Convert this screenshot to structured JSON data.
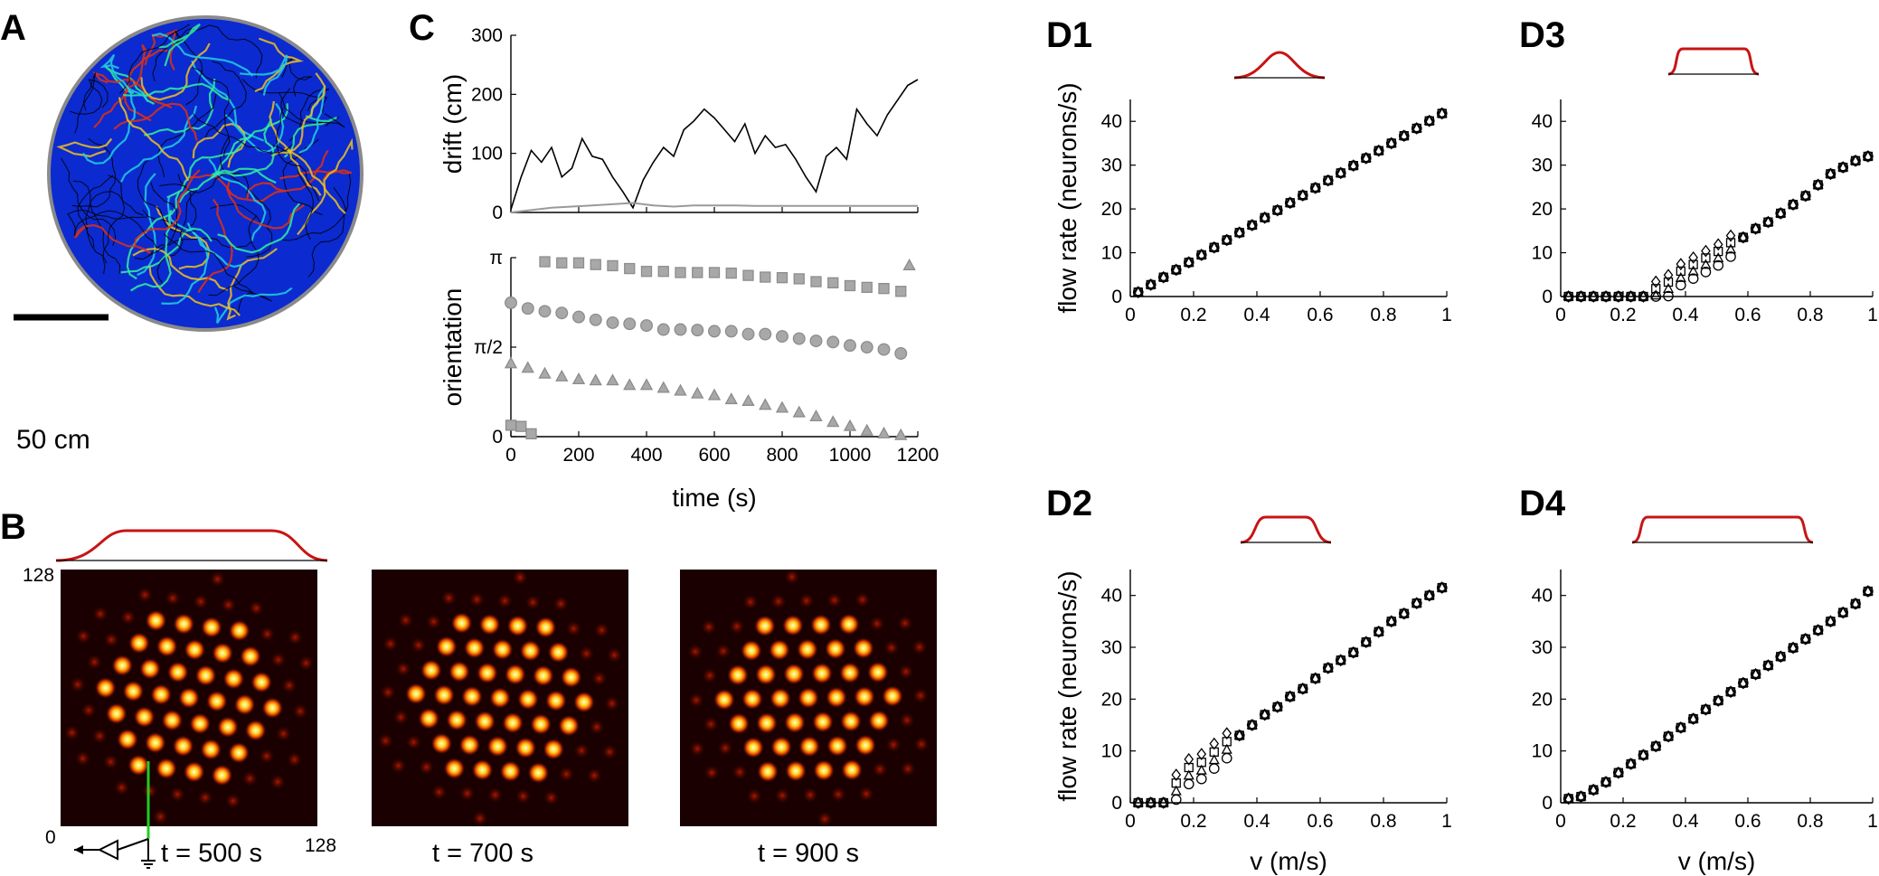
{
  "panels": {
    "A": "A",
    "B": "B",
    "C": "C",
    "D1": "D1",
    "D2": "D2",
    "D3": "D3",
    "D4": "D4"
  },
  "colors": {
    "profile_red": "#c81414",
    "marker_gray": "#a8a8a8",
    "drift_gray": "#9a9a9a",
    "arena_blue": "#0b2ad0",
    "arena_rim": "#8a8a8a",
    "green_line": "#22cc22"
  },
  "panelA": {
    "scalebar_label": "50 cm"
  },
  "panelB": {
    "ytick_top": "128",
    "ytick_bottom": "0",
    "xtick_right": "128",
    "captions": [
      "t = 500 s",
      "t = 700 s",
      "t = 900 s"
    ]
  },
  "chart_data": [
    {
      "id": "C-drift",
      "type": "line",
      "title": "",
      "xlabel": "",
      "ylabel": "drift (cm)",
      "xlim": [
        0,
        1200
      ],
      "ylim": [
        0,
        300
      ],
      "yticks": [
        "0",
        "100",
        "200",
        "300"
      ],
      "series": [
        {
          "name": "drift",
          "color": "#000000",
          "x": [
            0,
            30,
            60,
            90,
            120,
            150,
            180,
            210,
            240,
            270,
            300,
            330,
            360,
            390,
            420,
            450,
            480,
            510,
            540,
            570,
            600,
            630,
            660,
            690,
            720,
            750,
            780,
            810,
            840,
            870,
            900,
            930,
            960,
            990,
            1020,
            1050,
            1080,
            1110,
            1140,
            1170,
            1200
          ],
          "y": [
            5,
            60,
            105,
            85,
            110,
            60,
            75,
            125,
            95,
            90,
            60,
            35,
            8,
            55,
            85,
            110,
            95,
            140,
            155,
            175,
            160,
            140,
            120,
            150,
            100,
            130,
            110,
            115,
            90,
            60,
            35,
            95,
            110,
            90,
            175,
            150,
            130,
            165,
            190,
            215,
            225
          ]
        },
        {
          "name": "baseline",
          "color": "#9a9a9a",
          "x": [
            0,
            60,
            120,
            180,
            240,
            300,
            360,
            420,
            480,
            540,
            600,
            660,
            720,
            780,
            840,
            900,
            960,
            1020,
            1080,
            1140,
            1200
          ],
          "y": [
            0,
            4,
            8,
            10,
            12,
            14,
            16,
            12,
            10,
            12,
            12,
            12,
            11,
            11,
            11,
            11,
            11,
            11,
            11,
            11,
            11
          ]
        }
      ]
    },
    {
      "id": "C-orientation",
      "type": "scatter",
      "xlabel": "time (s)",
      "ylabel": "orientation",
      "xlim": [
        0,
        1200
      ],
      "ylim": [
        0,
        3.1416
      ],
      "xticks": [
        "0",
        "200",
        "400",
        "600",
        "800",
        "1000",
        "1200"
      ],
      "yticks": [
        "0",
        "π/2",
        "π"
      ],
      "series": [
        {
          "name": "squares",
          "marker": "square",
          "x": [
            0,
            30,
            60,
            100,
            150,
            200,
            250,
            300,
            350,
            400,
            450,
            500,
            550,
            600,
            650,
            700,
            750,
            800,
            850,
            900,
            950,
            1000,
            1050,
            1100,
            1150
          ],
          "y": [
            0.2,
            0.18,
            0.05,
            3.07,
            3.05,
            3.05,
            3.02,
            3.0,
            2.95,
            2.9,
            2.9,
            2.88,
            2.88,
            2.88,
            2.87,
            2.83,
            2.8,
            2.79,
            2.77,
            2.72,
            2.7,
            2.65,
            2.62,
            2.6,
            2.55
          ]
        },
        {
          "name": "circles",
          "marker": "circle",
          "x": [
            0,
            50,
            100,
            150,
            200,
            250,
            300,
            350,
            400,
            450,
            500,
            550,
            600,
            650,
            700,
            750,
            800,
            850,
            900,
            950,
            1000,
            1050,
            1100,
            1150
          ],
          "y": [
            2.35,
            2.25,
            2.2,
            2.17,
            2.1,
            2.05,
            2.0,
            1.98,
            1.95,
            1.88,
            1.88,
            1.87,
            1.85,
            1.85,
            1.8,
            1.8,
            1.76,
            1.72,
            1.68,
            1.66,
            1.6,
            1.57,
            1.53,
            1.46
          ]
        },
        {
          "name": "triangles",
          "marker": "triangle",
          "x": [
            0,
            50,
            100,
            150,
            200,
            250,
            300,
            350,
            400,
            450,
            500,
            550,
            600,
            650,
            700,
            750,
            800,
            850,
            900,
            950,
            1000,
            1050,
            1100,
            1150,
            1175
          ],
          "y": [
            1.28,
            1.2,
            1.1,
            1.05,
            1.0,
            0.98,
            0.98,
            0.9,
            0.9,
            0.85,
            0.8,
            0.75,
            0.72,
            0.65,
            0.62,
            0.55,
            0.5,
            0.42,
            0.35,
            0.25,
            0.18,
            0.1,
            0.05,
            0.02,
            3.0
          ]
        }
      ]
    },
    {
      "id": "D1",
      "type": "scatter",
      "ylabel": "flow rate (neurons/s)",
      "xlabel": "",
      "xlim": [
        0,
        1
      ],
      "ylim": [
        0,
        45
      ],
      "xticks": [
        "0",
        "0.2",
        "0.4",
        "0.6",
        "0.8",
        "1"
      ],
      "yticks": [
        "0",
        "10",
        "20",
        "30",
        "40"
      ],
      "profile": "gaussian",
      "series": [
        {
          "name": "all",
          "marker": "mixed",
          "x": [
            0.025,
            0.065,
            0.105,
            0.145,
            0.185,
            0.225,
            0.265,
            0.305,
            0.345,
            0.385,
            0.425,
            0.465,
            0.505,
            0.545,
            0.585,
            0.625,
            0.665,
            0.705,
            0.745,
            0.785,
            0.825,
            0.865,
            0.905,
            0.945,
            0.985
          ],
          "y": [
            1.0,
            2.7,
            4.4,
            6.1,
            7.8,
            9.5,
            11.2,
            12.9,
            14.6,
            16.3,
            18.0,
            19.7,
            21.4,
            23.1,
            24.8,
            26.5,
            28.2,
            29.9,
            31.6,
            33.3,
            35.0,
            36.7,
            38.4,
            40.1,
            41.8
          ]
        }
      ]
    },
    {
      "id": "D2",
      "type": "scatter",
      "ylabel": "flow rate (neurons/s)",
      "xlabel": "v (m/s)",
      "xlim": [
        0,
        1
      ],
      "ylim": [
        0,
        45
      ],
      "xticks": [
        "0",
        "0.2",
        "0.4",
        "0.6",
        "0.8",
        "1"
      ],
      "yticks": [
        "0",
        "10",
        "20",
        "30",
        "40"
      ],
      "profile": "short plateau",
      "series": [
        {
          "name": "all",
          "marker": "mixed",
          "x": [
            0.025,
            0.065,
            0.105,
            0.145,
            0.185,
            0.225,
            0.265,
            0.305,
            0.345,
            0.385,
            0.425,
            0.465,
            0.505,
            0.545,
            0.585,
            0.625,
            0.665,
            0.705,
            0.745,
            0.785,
            0.825,
            0.865,
            0.905,
            0.945,
            0.985
          ],
          "y": [
            0.0,
            0.0,
            0.0,
            3.0,
            6.0,
            7.0,
            9.0,
            11.0,
            13.0,
            15.0,
            17.0,
            18.5,
            20.5,
            22.0,
            24.0,
            26.0,
            27.5,
            29.0,
            31.0,
            33.0,
            35.0,
            36.5,
            38.5,
            40.0,
            41.5
          ]
        }
      ]
    },
    {
      "id": "D3",
      "type": "scatter",
      "ylabel": "",
      "xlabel": "",
      "xlim": [
        0,
        1
      ],
      "ylim": [
        0,
        45
      ],
      "xticks": [
        "0",
        "0.2",
        "0.4",
        "0.6",
        "0.8",
        "1"
      ],
      "yticks": [
        "0",
        "10",
        "20",
        "30",
        "40"
      ],
      "profile": "wide plateau",
      "series": [
        {
          "name": "all",
          "marker": "mixed",
          "x": [
            0.025,
            0.065,
            0.105,
            0.145,
            0.185,
            0.225,
            0.265,
            0.305,
            0.345,
            0.385,
            0.425,
            0.465,
            0.505,
            0.545,
            0.585,
            0.625,
            0.665,
            0.705,
            0.745,
            0.785,
            0.825,
            0.865,
            0.905,
            0.945,
            0.985
          ],
          "y": [
            0.0,
            0.0,
            0.0,
            0.0,
            0.0,
            0.0,
            0.0,
            1.0,
            2.5,
            5.0,
            6.5,
            8.0,
            9.5,
            11.5,
            13.5,
            15.5,
            17.0,
            19.0,
            21.0,
            23.0,
            25.5,
            28.0,
            29.5,
            31.0,
            32.0
          ]
        }
      ]
    },
    {
      "id": "D4",
      "type": "scatter",
      "ylabel": "",
      "xlabel": "v (m/s)",
      "xlim": [
        0,
        1
      ],
      "ylim": [
        0,
        45
      ],
      "xticks": [
        "0",
        "0.2",
        "0.4",
        "0.6",
        "0.8",
        "1"
      ],
      "yticks": [
        "0",
        "10",
        "20",
        "30",
        "40"
      ],
      "profile": "long plateau",
      "series": [
        {
          "name": "all",
          "marker": "mixed",
          "x": [
            0.025,
            0.065,
            0.105,
            0.145,
            0.185,
            0.225,
            0.265,
            0.305,
            0.345,
            0.385,
            0.425,
            0.465,
            0.505,
            0.545,
            0.585,
            0.625,
            0.665,
            0.705,
            0.745,
            0.785,
            0.825,
            0.865,
            0.905,
            0.945,
            0.985
          ],
          "y": [
            0.8,
            1.2,
            2.5,
            4.0,
            5.8,
            7.5,
            9.2,
            10.9,
            12.8,
            14.5,
            16.2,
            18.0,
            19.7,
            21.4,
            23.1,
            24.8,
            26.5,
            28.2,
            29.9,
            31.6,
            33.3,
            35.0,
            36.7,
            38.4,
            40.8
          ]
        }
      ]
    }
  ]
}
